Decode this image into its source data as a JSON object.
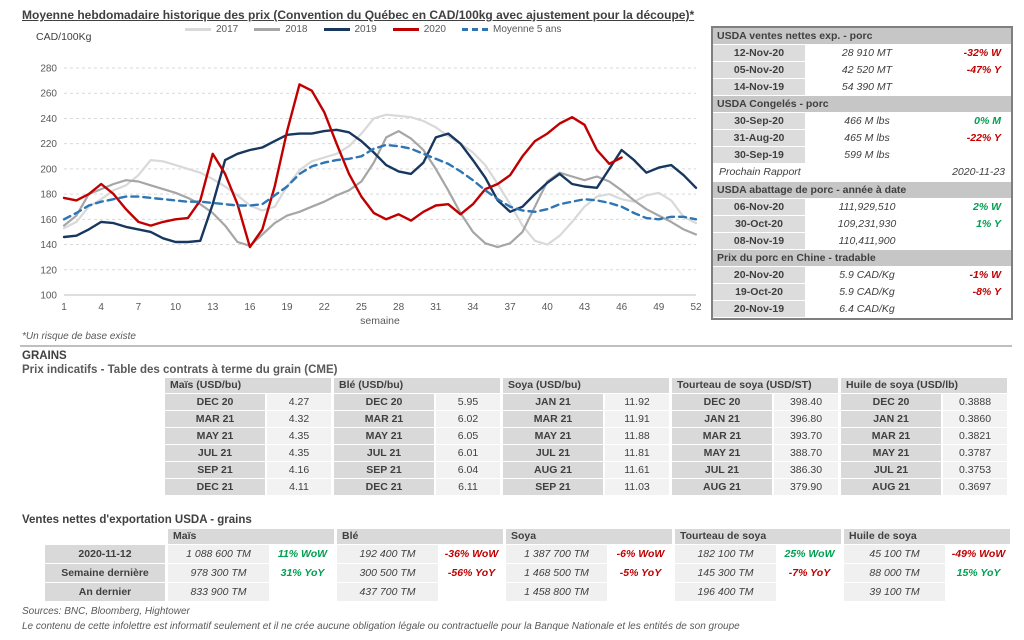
{
  "page": {
    "title": "Moyenne hebdomadaire historique des prix (Convention du Québec en CAD/100kg avec ajustement pour la découpe)*",
    "y_unit": "CAD/100Kg",
    "chart_footnote": "*Un risque de base existe",
    "grains_heading": "GRAINS",
    "cme_title": "Prix indicatifs - Table des contrats à terme du grain (CME)",
    "export_title": "Ventes nettes d'exportation USDA - grains",
    "sources": "Sources: BNC, Bloomberg, Hightower",
    "disclaimer": "Le contenu de cette infolettre est informatif seulement et il ne crée aucune obligation légale ou contractuelle pour la Banque Nationale et les entités de son groupe"
  },
  "chart_data": {
    "type": "line",
    "title": "Moyenne hebdomadaire historique des prix (Convention du Québec en CAD/100kg avec ajustement pour la découpe)*",
    "xlabel": "semaine",
    "ylabel": "CAD/100Kg",
    "ylim": [
      100,
      280
    ],
    "y_step": 20,
    "x_ticks": [
      1,
      4,
      7,
      10,
      13,
      16,
      19,
      22,
      25,
      28,
      31,
      34,
      37,
      40,
      43,
      46,
      49,
      52
    ],
    "grid": "dashed-horizontal",
    "legend_position": "top",
    "series": [
      {
        "name": "2017",
        "color": "#d9d9d9",
        "dashed": false,
        "width": 2.2,
        "values": [
          153,
          158,
          170,
          176,
          183,
          187,
          195,
          207,
          206,
          203,
          200,
          197,
          192,
          186,
          179,
          171,
          167,
          170,
          186,
          199,
          206,
          209,
          212,
          218,
          228,
          240,
          243,
          242,
          241,
          238,
          233,
          226,
          220,
          213,
          203,
          188,
          172,
          155,
          143,
          140,
          147,
          158,
          170,
          178,
          180,
          176,
          174,
          179,
          181,
          175,
          162,
          157
        ]
      },
      {
        "name": "2018",
        "color": "#a6a6a6",
        "dashed": false,
        "width": 2.2,
        "values": [
          155,
          163,
          180,
          184,
          188,
          191,
          190,
          187,
          184,
          181,
          177,
          172,
          165,
          155,
          142,
          139,
          148,
          157,
          163,
          166,
          170,
          174,
          179,
          183,
          190,
          205,
          225,
          230,
          224,
          215,
          200,
          183,
          165,
          150,
          141,
          138,
          141,
          150,
          170,
          190,
          197,
          194,
          191,
          194,
          190,
          183,
          175,
          168,
          163,
          158,
          152,
          148
        ]
      },
      {
        "name": "2019",
        "color": "#17375e",
        "dashed": false,
        "width": 2.4,
        "values": [
          146,
          147,
          152,
          158,
          157,
          154,
          152,
          150,
          145,
          142,
          142,
          143,
          172,
          207,
          212,
          215,
          217,
          222,
          227,
          228,
          228,
          230,
          231,
          229,
          222,
          213,
          203,
          198,
          196,
          205,
          225,
          228,
          220,
          207,
          193,
          175,
          166,
          170,
          180,
          189,
          196,
          188,
          186,
          185,
          200,
          215,
          207,
          197,
          201,
          203,
          195,
          185
        ]
      },
      {
        "name": "2020",
        "color": "#c00000",
        "dashed": false,
        "width": 2.4,
        "values": [
          177,
          175,
          180,
          188,
          180,
          168,
          158,
          155,
          158,
          160,
          161,
          175,
          212,
          196,
          172,
          138,
          152,
          186,
          230,
          267,
          262,
          245,
          220,
          196,
          178,
          165,
          160,
          164,
          159,
          166,
          171,
          172,
          164,
          172,
          184,
          188,
          195,
          210,
          222,
          228,
          236,
          241,
          235,
          215,
          204,
          209,
          null,
          null,
          null,
          null,
          null,
          null
        ]
      },
      {
        "name": "Moyenne 5 ans",
        "color": "#2e75b6",
        "dashed": true,
        "width": 2.4,
        "values": [
          160,
          165,
          171,
          174,
          176,
          178,
          178,
          177,
          176,
          175,
          174,
          174,
          173,
          172,
          171,
          171,
          172,
          179,
          186,
          196,
          202,
          205,
          207,
          208,
          210,
          216,
          219,
          218,
          216,
          212,
          208,
          204,
          198,
          191,
          183,
          176,
          170,
          167,
          166,
          168,
          172,
          174,
          176,
          175,
          173,
          170,
          165,
          161,
          160,
          162,
          162,
          160
        ]
      }
    ]
  },
  "pork_panel": {
    "sections": [
      {
        "header": "USDA ventes nettes exp. - porc",
        "rows": [
          {
            "date": "12-Nov-20",
            "value": "28 910  MT",
            "pct": "-32% W",
            "pct_color": "red"
          },
          {
            "date": "05-Nov-20",
            "value": "42 520  MT",
            "pct": "-47% Y",
            "pct_color": "red"
          },
          {
            "date": "14-Nov-19",
            "value": "54 390  MT",
            "pct": "",
            "pct_color": ""
          }
        ]
      },
      {
        "header": "USDA Congelés - porc",
        "rows": [
          {
            "date": "30-Sep-20",
            "value": "466 M lbs",
            "pct": "0% M",
            "pct_color": "green"
          },
          {
            "date": "31-Aug-20",
            "value": "465 M lbs",
            "pct": "-22% Y",
            "pct_color": "red"
          },
          {
            "date": "30-Sep-19",
            "value": "599 M lbs",
            "pct": "",
            "pct_color": ""
          }
        ],
        "note": {
          "label": "Prochain Rapport",
          "value": "2020-11-23"
        }
      },
      {
        "header": "USDA abattage de porc - année à date",
        "rows": [
          {
            "date": "06-Nov-20",
            "value": "111,929,510",
            "pct": "2% W",
            "pct_color": "green"
          },
          {
            "date": "30-Oct-20",
            "value": "109,231,930",
            "pct": "1% Y",
            "pct_color": "green"
          },
          {
            "date": "08-Nov-19",
            "value": "110,411,900",
            "pct": "",
            "pct_color": ""
          }
        ]
      },
      {
        "header": "Prix du porc en Chine - tradable",
        "rows": [
          {
            "date": "20-Nov-20",
            "value": "5.9 CAD/Kg",
            "pct": "-1% W",
            "pct_color": "red"
          },
          {
            "date": "19-Oct-20",
            "value": "5.9 CAD/Kg",
            "pct": "-8% Y",
            "pct_color": "red"
          },
          {
            "date": "20-Nov-19",
            "value": "6.4 CAD/Kg",
            "pct": "",
            "pct_color": ""
          }
        ]
      }
    ]
  },
  "cme_table": {
    "groups": [
      {
        "header": "Maïs (USD/bu)",
        "rows": [
          [
            "DEC 20",
            "4.27"
          ],
          [
            "MAR 21",
            "4.32"
          ],
          [
            "MAY 21",
            "4.35"
          ],
          [
            "JUL 21",
            "4.35"
          ],
          [
            "SEP 21",
            "4.16"
          ],
          [
            "DEC 21",
            "4.11"
          ]
        ]
      },
      {
        "header": "Blé (USD/bu)",
        "rows": [
          [
            "DEC 20",
            "5.95"
          ],
          [
            "MAR 21",
            "6.02"
          ],
          [
            "MAY 21",
            "6.05"
          ],
          [
            "JUL 21",
            "6.01"
          ],
          [
            "SEP 21",
            "6.04"
          ],
          [
            "DEC 21",
            "6.11"
          ]
        ]
      },
      {
        "header": "Soya (USD/bu)",
        "rows": [
          [
            "JAN 21",
            "11.92"
          ],
          [
            "MAR 21",
            "11.91"
          ],
          [
            "MAY 21",
            "11.88"
          ],
          [
            "JUL 21",
            "11.81"
          ],
          [
            "AUG 21",
            "11.61"
          ],
          [
            "SEP 21",
            "11.03"
          ]
        ]
      },
      {
        "header": "Tourteau de soya (USD/ST)",
        "rows": [
          [
            "DEC 20",
            "398.40"
          ],
          [
            "JAN 21",
            "396.80"
          ],
          [
            "MAR 21",
            "393.70"
          ],
          [
            "MAY 21",
            "388.70"
          ],
          [
            "JUL 21",
            "386.30"
          ],
          [
            "AUG 21",
            "379.90"
          ]
        ]
      },
      {
        "header": "Huile de soya (USD/lb)",
        "rows": [
          [
            "DEC 20",
            "0.3888"
          ],
          [
            "JAN 21",
            "0.3860"
          ],
          [
            "MAR 21",
            "0.3821"
          ],
          [
            "MAY 21",
            "0.3787"
          ],
          [
            "JUL 21",
            "0.3753"
          ],
          [
            "AUG 21",
            "0.3697"
          ]
        ]
      }
    ]
  },
  "export_table": {
    "row_labels": [
      "2020-11-12",
      "Semaine dernière",
      "An dernier"
    ],
    "groups": [
      {
        "header": "Maïs",
        "rows": [
          [
            "1 088 600 TM",
            "11% WoW",
            "green"
          ],
          [
            "978 300 TM",
            "31% YoY",
            "green"
          ],
          [
            "833 900 TM",
            "",
            ""
          ]
        ]
      },
      {
        "header": "Blé",
        "rows": [
          [
            "192 400 TM",
            "-36% WoW",
            "red"
          ],
          [
            "300 500 TM",
            "-56% YoY",
            "red"
          ],
          [
            "437 700 TM",
            "",
            ""
          ]
        ]
      },
      {
        "header": "Soya",
        "rows": [
          [
            "1 387 700 TM",
            "-6% WoW",
            "red"
          ],
          [
            "1 468 500 TM",
            "-5% YoY",
            "red"
          ],
          [
            "1 458 800 TM",
            "",
            ""
          ]
        ]
      },
      {
        "header": "Tourteau de soya",
        "rows": [
          [
            "182 100 TM",
            "25% WoW",
            "green"
          ],
          [
            "145 300 TM",
            "-7% YoY",
            "red"
          ],
          [
            "196 400 TM",
            "",
            ""
          ]
        ]
      },
      {
        "header": "Huile de soya",
        "rows": [
          [
            "45 100 TM",
            "-49% WoW",
            "red"
          ],
          [
            "88 000 TM",
            "15% YoY",
            "green"
          ],
          [
            "39 100 TM",
            "",
            ""
          ]
        ]
      }
    ]
  },
  "colors": {
    "positive": "#00a050",
    "negative": "#c00000",
    "grid": "#d9d9d9",
    "header_band": "#d9d9d9",
    "panel_header_band": "#c6c6c6"
  }
}
